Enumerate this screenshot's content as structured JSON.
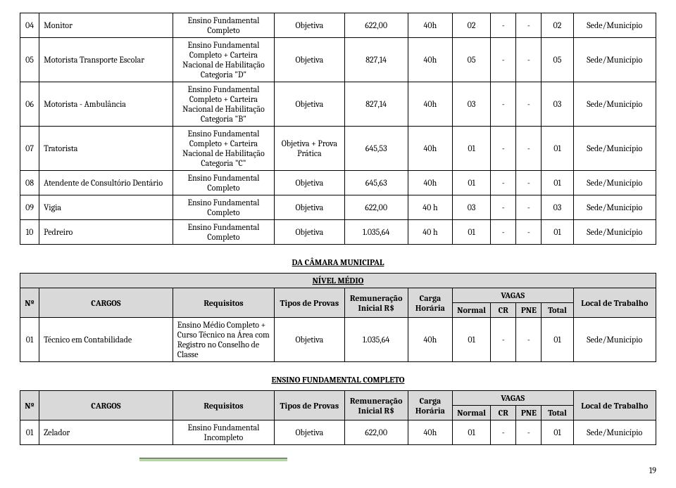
{
  "tableA": {
    "rows": [
      {
        "num": "04",
        "cargo": "Monitor",
        "req": "Ensino Fundamental Completo",
        "tipo": "Objetiva",
        "rem": "622,00",
        "carga": "40h",
        "normal": "02",
        "cr": "-",
        "pne": "-",
        "total": "02",
        "local": "Sede/Município"
      },
      {
        "num": "05",
        "cargo": "Motorista Transporte Escolar",
        "req": "Ensino Fundamental Completo + Carteira Nacional de Habilitação Categoria \"D\"",
        "tipo": "Objetiva",
        "rem": "827,14",
        "carga": "40h",
        "normal": "05",
        "cr": "-",
        "pne": "-",
        "total": "05",
        "local": "Sede/Município"
      },
      {
        "num": "06",
        "cargo": "Motorista - Ambulância",
        "req": "Ensino Fundamental Completo + Carteira Nacional de Habilitação Categoria \"B\"",
        "tipo": "Objetiva",
        "rem": "827,14",
        "carga": "40h",
        "normal": "03",
        "cr": "-",
        "pne": "-",
        "total": "03",
        "local": "Sede/Município"
      },
      {
        "num": "07",
        "cargo": "Tratorista",
        "req": "Ensino Fundamental Completo + Carteira Nacional de Habilitação Categoria \"C\"",
        "tipo": "Objetiva + Prova Prática",
        "rem": "645,53",
        "carga": "40h",
        "normal": "01",
        "cr": "-",
        "pne": "-",
        "total": "01",
        "local": "Sede/Município"
      },
      {
        "num": "08",
        "cargo": "Atendente de Consultório Dentário",
        "req": "Ensino Fundamental Completo",
        "tipo": "Objetiva",
        "rem": "645,63",
        "carga": "40h",
        "normal": "01",
        "cr": "-",
        "pne": "-",
        "total": "01",
        "local": "Sede/Município"
      },
      {
        "num": "09",
        "cargo": "Vigia",
        "req": "Ensino Fundamental Completo",
        "tipo": "Objetiva",
        "rem": "622,00",
        "carga": "40 h",
        "normal": "03",
        "cr": "-",
        "pne": "-",
        "total": "03",
        "local": "Sede/Município"
      },
      {
        "num": "10",
        "cargo": "Pedreiro",
        "req": "Ensino Fundamental Completo",
        "tipo": "Objetiva",
        "rem": "1.035,64",
        "carga": "40 h",
        "normal": "01",
        "cr": "-",
        "pne": "-",
        "total": "01",
        "local": "Sede/Município"
      }
    ]
  },
  "sectionB": {
    "title": "DA CÂMARA MUNICIPAL",
    "level": "NÍVEL MÉDIO",
    "headers": {
      "num": "Nº",
      "cargo": "CARGOS",
      "req": "Requisitos",
      "tipo": "Tipos de Provas",
      "rem": "Remuneração Inicial R$",
      "carga": "Carga Horária",
      "vagas": "VAGAS",
      "local": "Local de Trabalho",
      "normal": "Normal",
      "cr": "CR",
      "pne": "PNE",
      "total": "Total"
    },
    "rows": [
      {
        "num": "01",
        "cargo": "Técnico em Contabilidade",
        "req": "Ensino Médio Completo + Curso Técnico na Área com Registro no Conselho de Classe",
        "tipo": "Objetiva",
        "rem": "1.035,64",
        "carga": "40h",
        "normal": "01",
        "cr": "-",
        "pne": "-",
        "total": "01",
        "local": "Sede/Município"
      }
    ]
  },
  "sectionC": {
    "title": "ENSINO FUNDAMENTAL COMPLETO",
    "headers": {
      "num": "Nº",
      "cargo": "CARGOS",
      "req": "Requisitos",
      "tipo": "Tipos de Provas",
      "rem": "Remuneração Inicial R$",
      "carga": "Carga Horária",
      "vagas": "VAGAS",
      "local": "Local de Trabalho",
      "normal": "Normal",
      "cr": "CR",
      "pne": "PNE",
      "total": "Total"
    },
    "rows": [
      {
        "num": "01",
        "cargo": "Zelador",
        "req": "Ensino Fundamental Incompleto",
        "tipo": "Objetiva",
        "rem": "622,00",
        "carga": "40h",
        "normal": "01",
        "cr": "-",
        "pne": "-",
        "total": "01",
        "local": "Sede/Município"
      }
    ]
  },
  "pageNumber": "19",
  "colwidths": {
    "num": "3%",
    "cargo": "21%",
    "req": "16%",
    "tipo": "11%",
    "rem": "10%",
    "carga": "7%",
    "normal": "6%",
    "cr": "4%",
    "pne": "4%",
    "total": "5%",
    "local": "13%"
  }
}
